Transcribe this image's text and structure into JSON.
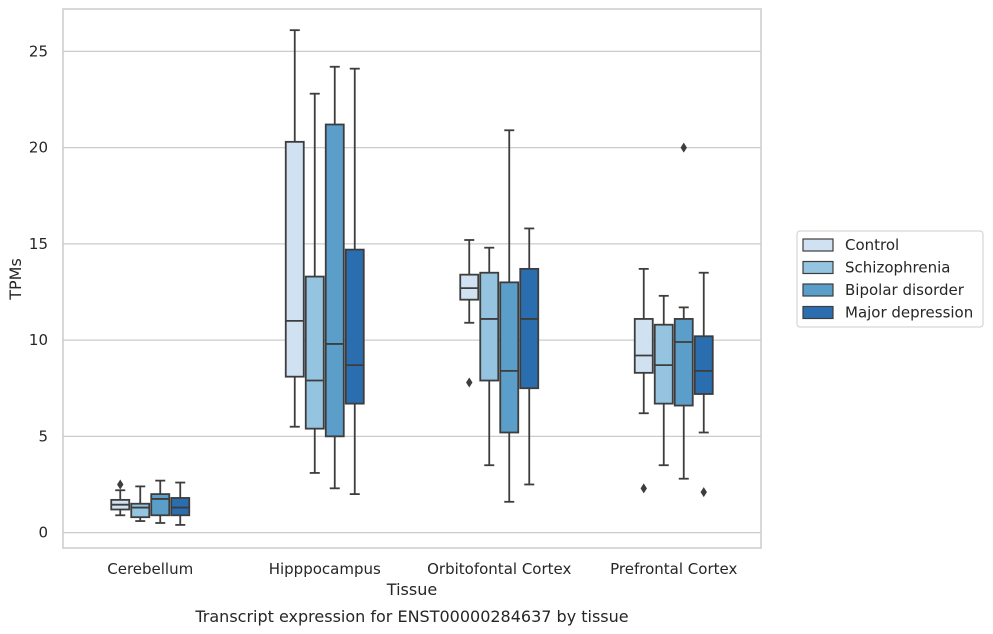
{
  "caption": "Transcript expression for ENST00000284637 by tissue",
  "chart_data": {
    "type": "box",
    "xlabel": "Tissue",
    "ylabel": "TPMs",
    "ylim": [
      -0.8,
      27.2
    ],
    "yticks": [
      0,
      5,
      10,
      15,
      20,
      25
    ],
    "grid": true,
    "legend_position": "right",
    "categories": [
      "Cerebellum",
      "Hipppocampus",
      "Orbitofontal Cortex",
      "Prefrontal Cortex"
    ],
    "series": [
      {
        "name": "Control",
        "color": "#d0e1f2",
        "boxes": [
          {
            "whisker_low": 0.9,
            "q1": 1.2,
            "median": 1.45,
            "q3": 1.7,
            "whisker_high": 2.2,
            "outliers": [
              2.5
            ]
          },
          {
            "whisker_low": 5.5,
            "q1": 8.1,
            "median": 11.0,
            "q3": 20.3,
            "whisker_high": 26.1,
            "outliers": []
          },
          {
            "whisker_low": 10.9,
            "q1": 12.1,
            "median": 12.7,
            "q3": 13.4,
            "whisker_high": 15.2,
            "outliers": [
              7.8
            ]
          },
          {
            "whisker_low": 6.2,
            "q1": 8.3,
            "median": 9.2,
            "q3": 11.1,
            "whisker_high": 13.7,
            "outliers": [
              2.3
            ]
          }
        ]
      },
      {
        "name": "Schizophrenia",
        "color": "#94c4df",
        "boxes": [
          {
            "whisker_low": 0.6,
            "q1": 0.8,
            "median": 1.3,
            "q3": 1.5,
            "whisker_high": 2.4,
            "outliers": []
          },
          {
            "whisker_low": 3.1,
            "q1": 5.4,
            "median": 7.9,
            "q3": 13.3,
            "whisker_high": 22.8,
            "outliers": []
          },
          {
            "whisker_low": 3.5,
            "q1": 7.9,
            "median": 11.1,
            "q3": 13.5,
            "whisker_high": 14.8,
            "outliers": []
          },
          {
            "whisker_low": 3.5,
            "q1": 6.7,
            "median": 8.7,
            "q3": 10.8,
            "whisker_high": 12.3,
            "outliers": []
          }
        ]
      },
      {
        "name": "Bipolar disorder",
        "color": "#5a9ec9",
        "boxes": [
          {
            "whisker_low": 0.5,
            "q1": 0.9,
            "median": 1.75,
            "q3": 2.0,
            "whisker_high": 2.7,
            "outliers": []
          },
          {
            "whisker_low": 2.3,
            "q1": 5.0,
            "median": 9.8,
            "q3": 21.2,
            "whisker_high": 24.2,
            "outliers": []
          },
          {
            "whisker_low": 1.6,
            "q1": 5.2,
            "median": 8.4,
            "q3": 13.0,
            "whisker_high": 20.9,
            "outliers": []
          },
          {
            "whisker_low": 2.8,
            "q1": 6.6,
            "median": 9.9,
            "q3": 11.1,
            "whisker_high": 11.7,
            "outliers": [
              20.0
            ]
          }
        ]
      },
      {
        "name": "Major depression",
        "color": "#2a6eb0",
        "boxes": [
          {
            "whisker_low": 0.4,
            "q1": 0.9,
            "median": 1.3,
            "q3": 1.8,
            "whisker_high": 2.6,
            "outliers": []
          },
          {
            "whisker_low": 2.0,
            "q1": 6.7,
            "median": 8.7,
            "q3": 14.7,
            "whisker_high": 24.1,
            "outliers": []
          },
          {
            "whisker_low": 2.5,
            "q1": 7.5,
            "median": 11.1,
            "q3": 13.7,
            "whisker_high": 15.8,
            "outliers": []
          },
          {
            "whisker_low": 5.2,
            "q1": 7.2,
            "median": 8.4,
            "q3": 10.2,
            "whisker_high": 13.5,
            "outliers": [
              2.1
            ]
          }
        ]
      }
    ]
  }
}
